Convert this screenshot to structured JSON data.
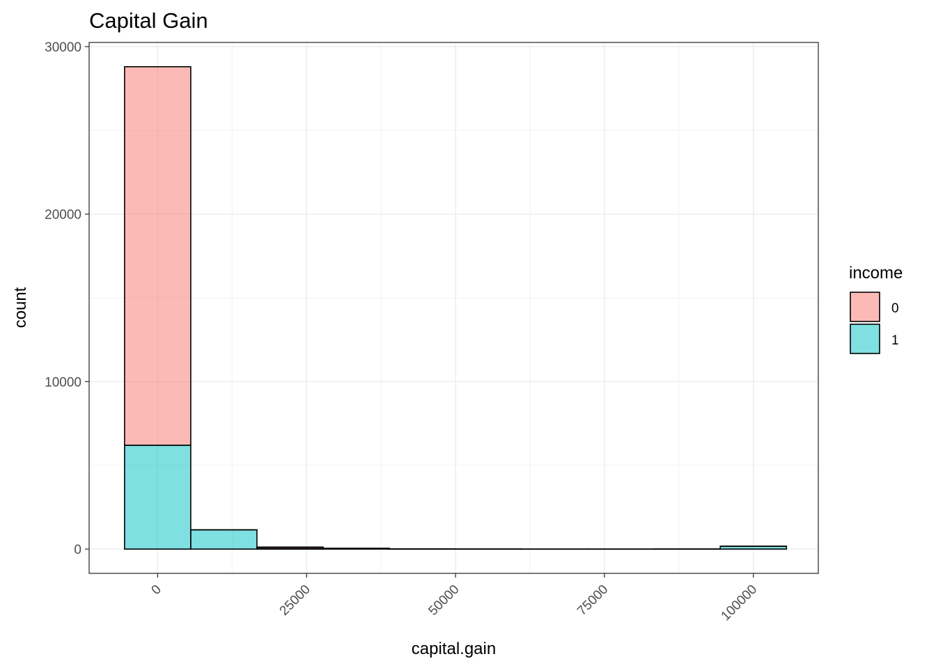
{
  "chart_data": {
    "type": "bar",
    "title": "Capital Gain",
    "xlabel": "capital.gain",
    "ylabel": "count",
    "xlim": [
      -11500,
      110900
    ],
    "ylim": [
      -1450,
      30250
    ],
    "x_ticks": [
      0,
      25000,
      50000,
      75000,
      100000
    ],
    "y_ticks": [
      0,
      10000,
      20000,
      30000
    ],
    "grid": true,
    "bin_width": 11111,
    "bin_centers": [
      0,
      11111,
      22222,
      33333,
      44444,
      55556,
      66667,
      77778,
      88889,
      100000
    ],
    "stacked": true,
    "legend": {
      "title": "income",
      "placement": "right"
    },
    "series": [
      {
        "name": "0",
        "color": "#F8766D",
        "values": [
          22600,
          0,
          80,
          20,
          5,
          0,
          0,
          0,
          0,
          0
        ]
      },
      {
        "name": "1",
        "color": "#00BFC4",
        "values": [
          6200,
          1150,
          40,
          30,
          5,
          5,
          0,
          0,
          5,
          170
        ]
      }
    ]
  }
}
